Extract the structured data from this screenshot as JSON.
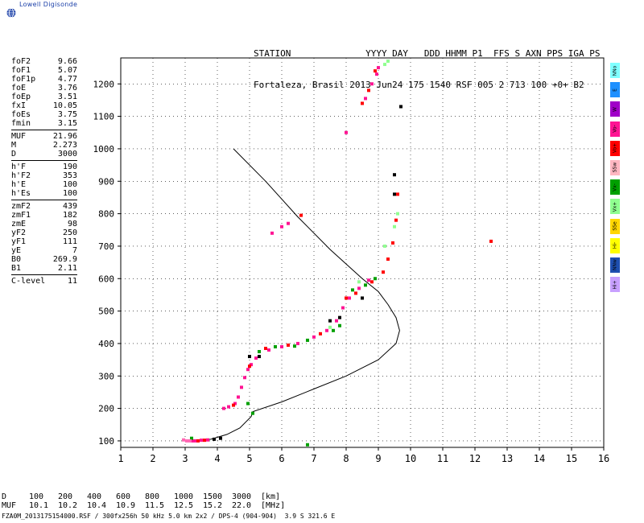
{
  "logo": {
    "text": "Lowell Digisonde",
    "icon": "globe-icon"
  },
  "header": {
    "line1": "STATION              YYYY DAY   DDD HHMM P1  FFS S AXN PPS IGA PS",
    "line2": "Fortaleza, Brasil 2013 Jun24 175 1540 RSF 005 2 713 100 +0+ B2"
  },
  "params": [
    [
      {
        "k": "foF2",
        "v": "9.66"
      },
      {
        "k": "foF1",
        "v": "5.07"
      },
      {
        "k": "foF1p",
        "v": "4.77"
      },
      {
        "k": "foE",
        "v": "3.76"
      },
      {
        "k": "foEp",
        "v": "3.51"
      },
      {
        "k": "fxI",
        "v": "10.05"
      },
      {
        "k": "foEs",
        "v": "3.75"
      },
      {
        "k": "fmin",
        "v": "3.15"
      }
    ],
    [
      {
        "k": "MUF",
        "v": "21.96"
      },
      {
        "k": "M",
        "v": "2.273"
      },
      {
        "k": "D",
        "v": "3000"
      }
    ],
    [
      {
        "k": "h'F",
        "v": "190"
      },
      {
        "k": "h'F2",
        "v": "353"
      },
      {
        "k": "h'E",
        "v": "100"
      },
      {
        "k": "h'Es",
        "v": "100"
      }
    ],
    [
      {
        "k": "zmF2",
        "v": "439"
      },
      {
        "k": "zmF1",
        "v": "182"
      },
      {
        "k": "zmE",
        "v": "98"
      },
      {
        "k": "yF2",
        "v": "250"
      },
      {
        "k": "yF1",
        "v": "111"
      },
      {
        "k": "yE",
        "v": "7"
      },
      {
        "k": "B0",
        "v": "269.9"
      },
      {
        "k": "B1",
        "v": "2.11"
      }
    ],
    [
      {
        "k": "C-level",
        "v": "11"
      }
    ]
  ],
  "legend": [
    {
      "label": "NNo",
      "color": "#7fffff"
    },
    {
      "label": "E",
      "color": "#1e90ff"
    },
    {
      "label": "W",
      "color": "#a000c8"
    },
    {
      "label": "Vo-",
      "color": "#ff1493"
    },
    {
      "label": "Vo+",
      "color": "#ff0000"
    },
    {
      "label": "SSw",
      "color": "#ffb6c1"
    },
    {
      "label": "Vx-",
      "color": "#00a000"
    },
    {
      "label": "Vx+",
      "color": "#90ff90"
    },
    {
      "label": "SSe",
      "color": "#ffd700"
    },
    {
      "label": "Hi-",
      "color": "#ffff00"
    },
    {
      "label": "NNw",
      "color": "#1e4fb0"
    },
    {
      "label": "Hi+",
      "color": "#c8a0ff"
    }
  ],
  "muf_table": {
    "d_label": "D",
    "muf_label": "MUF",
    "d_values": [
      "100",
      "200",
      "400",
      "600",
      "800",
      "1000",
      "1500",
      "3000",
      "[km]"
    ],
    "muf_values": [
      "10.1",
      "10.2",
      "10.4",
      "10.9",
      "11.5",
      "12.5",
      "15.2",
      "22.0",
      "[MHz]"
    ]
  },
  "footer": "FZA0M_2013175154000.RSF / 300fx256h 50 kHz 5.0 km 2x2 / DPS-4 (904-904)  3.9 S 321.6 E",
  "chart_data": {
    "type": "scatter",
    "xlim": [
      1,
      16
    ],
    "ylim": [
      80,
      1280
    ],
    "x_ticks": [
      1,
      2,
      3,
      4,
      5,
      6,
      7,
      8,
      9,
      10,
      11,
      12,
      13,
      14,
      15,
      16
    ],
    "y_ticks": [
      100,
      200,
      300,
      400,
      500,
      600,
      700,
      800,
      900,
      1000,
      1100,
      1200
    ],
    "grid": "dotted",
    "profile": [
      [
        4.5,
        1000
      ],
      [
        5.5,
        900
      ],
      [
        6.5,
        790
      ],
      [
        7.5,
        690
      ],
      [
        8.5,
        600
      ],
      [
        9.0,
        560
      ],
      [
        9.3,
        520
      ],
      [
        9.55,
        480
      ],
      [
        9.66,
        440
      ],
      [
        9.55,
        400
      ],
      [
        9.0,
        350
      ],
      [
        8.0,
        300
      ],
      [
        7.0,
        260
      ],
      [
        6.0,
        220
      ],
      [
        5.1,
        190
      ],
      [
        5.05,
        175
      ],
      [
        4.7,
        140
      ],
      [
        4.3,
        120
      ],
      [
        3.8,
        105
      ],
      [
        3.2,
        100
      ]
    ],
    "series": [
      {
        "color": "#ff1493",
        "points": [
          [
            3.2,
            100
          ],
          [
            3.3,
            100
          ],
          [
            3.5,
            102
          ],
          [
            3.7,
            103
          ],
          [
            4.2,
            200
          ],
          [
            4.35,
            205
          ],
          [
            4.55,
            215
          ],
          [
            4.65,
            235
          ],
          [
            4.75,
            265
          ],
          [
            4.85,
            295
          ],
          [
            4.95,
            320
          ],
          [
            5.05,
            335
          ],
          [
            5.2,
            355
          ],
          [
            5.6,
            380
          ],
          [
            6.0,
            390
          ],
          [
            6.5,
            400
          ],
          [
            7.0,
            420
          ],
          [
            7.4,
            440
          ],
          [
            7.7,
            470
          ],
          [
            7.9,
            510
          ],
          [
            8.1,
            540
          ],
          [
            8.4,
            570
          ],
          [
            8.7,
            595
          ],
          [
            8.95,
            1230
          ],
          [
            9.0,
            1250
          ],
          [
            8.8,
            1200
          ],
          [
            8.6,
            1155
          ],
          [
            8.0,
            1050
          ],
          [
            5.7,
            740
          ],
          [
            6.0,
            760
          ],
          [
            6.2,
            770
          ]
        ]
      },
      {
        "color": "#ff0000",
        "points": [
          [
            3.4,
            100
          ],
          [
            3.6,
            102
          ],
          [
            4.5,
            210
          ],
          [
            5.0,
            330
          ],
          [
            5.5,
            385
          ],
          [
            6.2,
            395
          ],
          [
            7.2,
            430
          ],
          [
            8.0,
            540
          ],
          [
            8.3,
            555
          ],
          [
            8.8,
            590
          ],
          [
            9.15,
            620
          ],
          [
            9.3,
            660
          ],
          [
            9.45,
            710
          ],
          [
            9.55,
            780
          ],
          [
            9.6,
            860
          ],
          [
            8.9,
            1240
          ],
          [
            8.7,
            1180
          ],
          [
            8.5,
            1140
          ],
          [
            12.5,
            715
          ],
          [
            6.6,
            795
          ]
        ]
      },
      {
        "color": "#00a000",
        "points": [
          [
            3.2,
            108
          ],
          [
            4.95,
            215
          ],
          [
            5.1,
            185
          ],
          [
            5.3,
            375
          ],
          [
            5.8,
            390
          ],
          [
            6.4,
            392
          ],
          [
            6.8,
            410
          ],
          [
            7.6,
            440
          ],
          [
            7.8,
            455
          ],
          [
            8.2,
            565
          ],
          [
            8.6,
            580
          ],
          [
            8.9,
            600
          ],
          [
            6.8,
            88
          ]
        ]
      },
      {
        "color": "#90ff90",
        "points": [
          [
            8.4,
            590
          ],
          [
            9.2,
            700
          ],
          [
            9.5,
            760
          ],
          [
            9.6,
            800
          ],
          [
            9.3,
            1270
          ],
          [
            9.2,
            1260
          ],
          [
            7.5,
            450
          ]
        ]
      },
      {
        "color": "#000000",
        "points": [
          [
            5.0,
            360
          ],
          [
            5.3,
            360
          ],
          [
            7.5,
            470
          ],
          [
            7.8,
            480
          ],
          [
            8.5,
            540
          ],
          [
            9.5,
            920
          ],
          [
            9.5,
            860
          ],
          [
            9.7,
            1130
          ],
          [
            3.9,
            105
          ],
          [
            4.1,
            108
          ]
        ]
      },
      {
        "color": "#ff69b4",
        "points": [
          [
            2.95,
            103
          ],
          [
            3.05,
            100
          ],
          [
            3.15,
            100
          ]
        ]
      }
    ]
  }
}
